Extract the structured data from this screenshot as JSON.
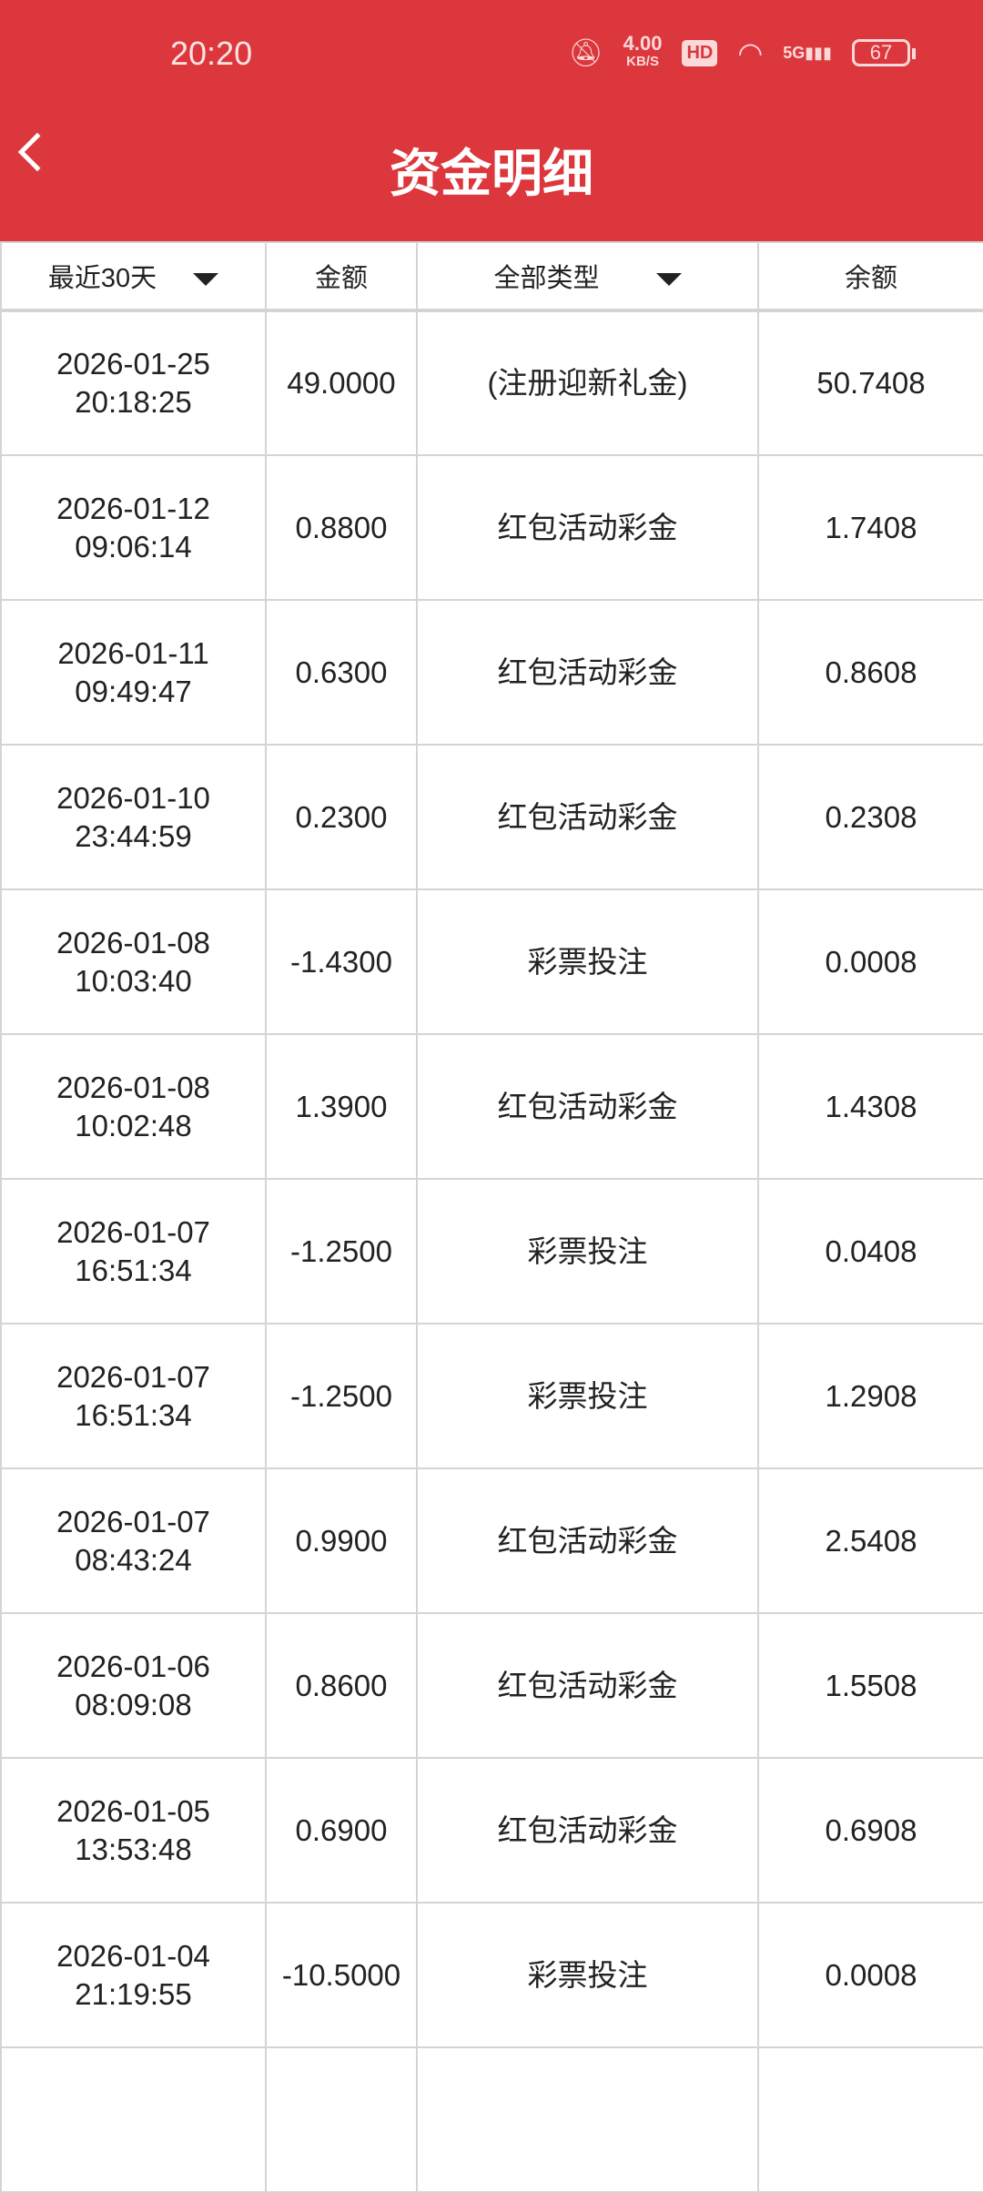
{
  "status": {
    "time": "20:20",
    "speed": "4.00",
    "speed_unit": "KB/S",
    "hd": "HD",
    "network": "5G",
    "battery": "67",
    "colors": {
      "header": "#dc373d"
    }
  },
  "header": {
    "title": "资金明细"
  },
  "filters": {
    "period": "最近30天",
    "amount": "金额",
    "type": "全部类型",
    "balance": "余额"
  },
  "rows": [
    {
      "date": "2026-01-25",
      "time": "20:18:25",
      "amount": "49.0000",
      "type": "(注册迎新礼金)",
      "balance": "50.7408"
    },
    {
      "date": "2026-01-12",
      "time": "09:06:14",
      "amount": "0.8800",
      "type": "红包活动彩金",
      "balance": "1.7408"
    },
    {
      "date": "2026-01-11",
      "time": "09:49:47",
      "amount": "0.6300",
      "type": "红包活动彩金",
      "balance": "0.8608"
    },
    {
      "date": "2026-01-10",
      "time": "23:44:59",
      "amount": "0.2300",
      "type": "红包活动彩金",
      "balance": "0.2308"
    },
    {
      "date": "2026-01-08",
      "time": "10:03:40",
      "amount": "-1.4300",
      "type": "彩票投注",
      "balance": "0.0008"
    },
    {
      "date": "2026-01-08",
      "time": "10:02:48",
      "amount": "1.3900",
      "type": "红包活动彩金",
      "balance": "1.4308"
    },
    {
      "date": "2026-01-07",
      "time": "16:51:34",
      "amount": "-1.2500",
      "type": "彩票投注",
      "balance": "0.0408"
    },
    {
      "date": "2026-01-07",
      "time": "16:51:34",
      "amount": "-1.2500",
      "type": "彩票投注",
      "balance": "1.2908"
    },
    {
      "date": "2026-01-07",
      "time": "08:43:24",
      "amount": "0.9900",
      "type": "红包活动彩金",
      "balance": "2.5408"
    },
    {
      "date": "2026-01-06",
      "time": "08:09:08",
      "amount": "0.8600",
      "type": "红包活动彩金",
      "balance": "1.5508"
    },
    {
      "date": "2026-01-05",
      "time": "13:53:48",
      "amount": "0.6900",
      "type": "红包活动彩金",
      "balance": "0.6908"
    },
    {
      "date": "2026-01-04",
      "time": "21:19:55",
      "amount": "-10.5000",
      "type": "彩票投注",
      "balance": "0.0008"
    }
  ]
}
